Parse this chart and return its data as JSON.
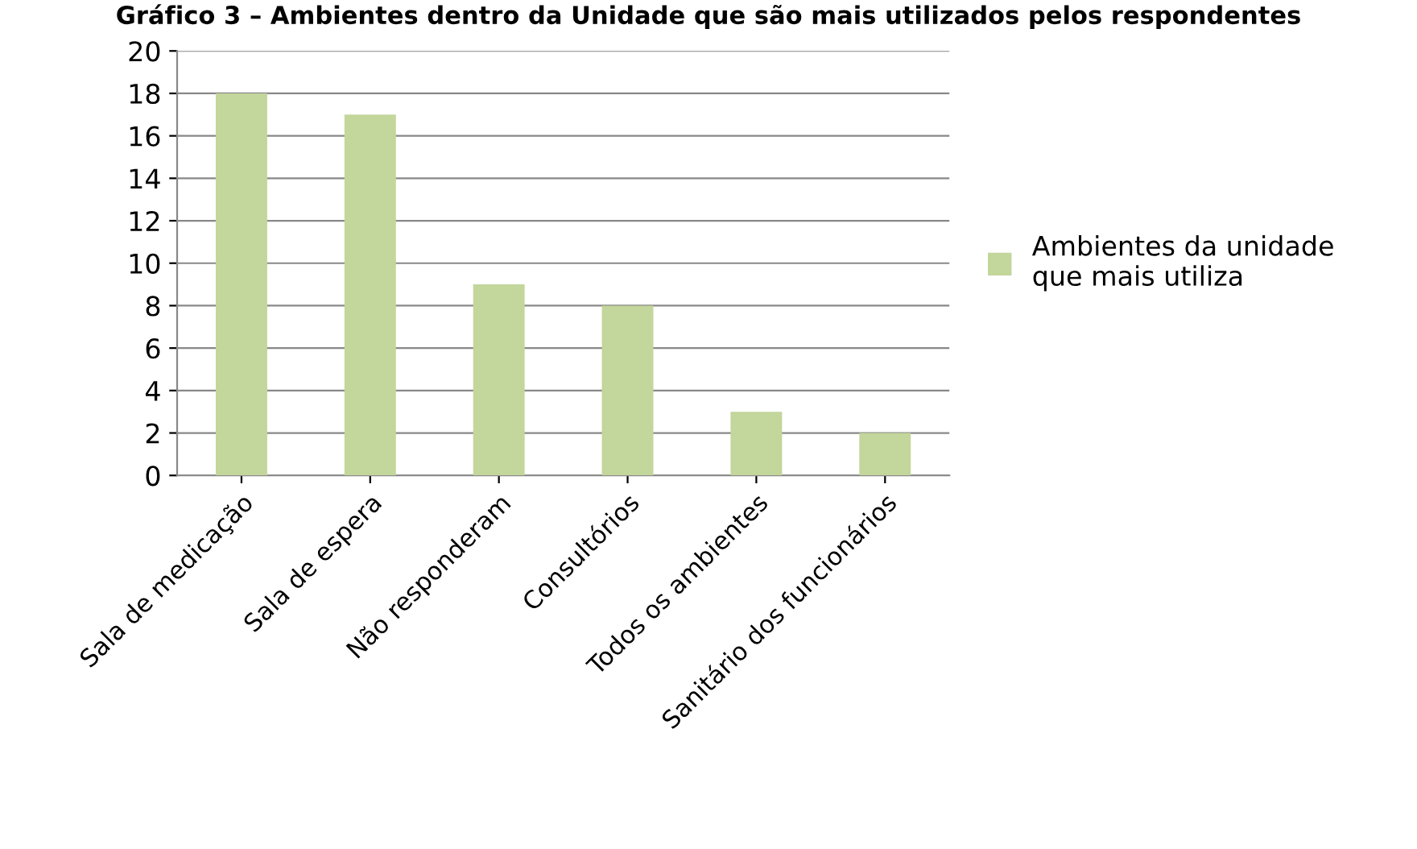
{
  "chart_data": {
    "type": "bar",
    "title": "Gráfico 3 – Ambientes dentro da Unidade que são mais utilizados pelos respondentes",
    "categories": [
      "Sala de medicação",
      "Sala de espera",
      "Não responderam",
      "Consultórios",
      "Todos os ambientes",
      "Sanitário dos funcionários"
    ],
    "series": [
      {
        "name": "Ambientes da unidade\nque mais utiliza",
        "color": "#c3d69b",
        "values": [
          18,
          17,
          9,
          8,
          3,
          2
        ]
      }
    ],
    "ylim": [
      0,
      20
    ],
    "yticks": [
      0,
      2,
      4,
      6,
      8,
      10,
      12,
      14,
      16,
      18,
      20
    ],
    "grid": "y",
    "legend": "right"
  }
}
